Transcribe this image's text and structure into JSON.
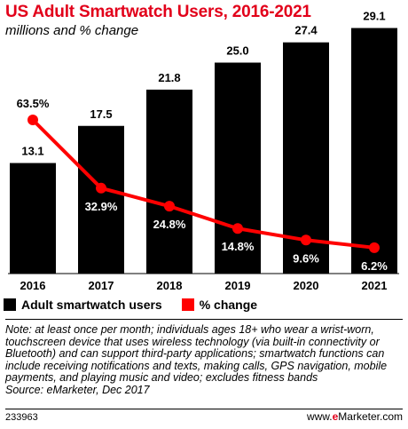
{
  "title": "US Adult Smartwatch Users, 2016-2021",
  "subtitle": "millions and % change",
  "chart_data": {
    "type": "bar",
    "categories": [
      "2016",
      "2017",
      "2018",
      "2019",
      "2020",
      "2021"
    ],
    "series": [
      {
        "name": "Adult smartwatch users",
        "type": "bar",
        "values": [
          13.1,
          17.5,
          21.8,
          25.0,
          27.4,
          29.1
        ],
        "labels": [
          "13.1",
          "17.5",
          "21.8",
          "25.0",
          "27.4",
          "29.1"
        ],
        "color": "#000000"
      },
      {
        "name": "% change",
        "type": "line",
        "values": [
          63.5,
          32.9,
          24.8,
          14.8,
          9.6,
          6.2
        ],
        "labels": [
          "63.5%",
          "32.9%",
          "24.8%",
          "14.8%",
          "9.6%",
          "6.2%"
        ],
        "color": "#ff0000"
      }
    ],
    "legend_position": "bottom-left",
    "grid": false
  },
  "legend": {
    "bar_label": "Adult smartwatch users",
    "line_label": "% change"
  },
  "note": "Note: at least once per month; individuals ages 18+ who wear a wrist-worn, touchscreen device that uses wireless technology (via built-in connectivity or Bluetooth) and can support third-party applications; smartwatch functions can include receiving notifications and texts, making calls, GPS navigation, mobile payments, and playing music and video; excludes fitness bands",
  "source": "Source: eMarketer, Dec 2017",
  "chart_id": "233963",
  "brand": {
    "prefix": "www.",
    "e": "e",
    "name": "Marketer",
    "suffix": ".com"
  }
}
